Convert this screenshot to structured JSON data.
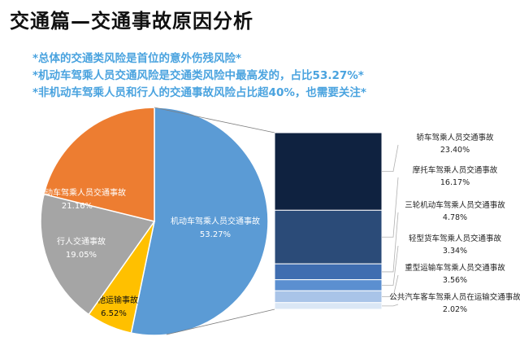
{
  "header": {
    "title": "交通篇—交通事故原因分析"
  },
  "notes": [
    "*总体的交通类风险是首位的意外伤残风险*",
    "*机动车驾乘人员交通风险是交通类风险中最高发的，占比53.27%*",
    "*非机动车驾乘人员和行人的交通事故风险占比超40%，也需要关注*"
  ],
  "chart_data": [
    {
      "type": "pie",
      "title": "",
      "slices": [
        {
          "name": "机动车驾乘人员交通事故",
          "value": 53.27,
          "label": "53.27%",
          "color": "#5b9bd5"
        },
        {
          "name": "其他运输事故",
          "value": 6.52,
          "label": "6.52%",
          "color": "#ffc000"
        },
        {
          "name": "行人交通事故",
          "value": 19.05,
          "label": "19.05%",
          "color": "#a5a5a5"
        },
        {
          "name": "非机动车驾乘人员交通事故",
          "value": 21.16,
          "label": "21.16%",
          "color": "#ed7d31"
        }
      ]
    },
    {
      "type": "bar",
      "stacked": true,
      "title": "",
      "categories": [
        "轿车驾乘人员交通事故",
        "摩托车驾乘人员交通事故",
        "三轮机动车驾乘人员交通事故",
        "轻型货车驾乘人员交通事故",
        "重型运输车驾乘人员交通事故",
        "公共汽车客车驾乘人员在运输交通事故"
      ],
      "values": [
        23.4,
        16.17,
        4.78,
        3.34,
        3.56,
        2.02
      ],
      "labels": [
        "23.40%",
        "16.17%",
        "4.78%",
        "3.34%",
        "3.56%",
        "2.02%"
      ],
      "colors": [
        "#0f2240",
        "#2b4b78",
        "#3f6db0",
        "#5b8fd0",
        "#a9c4e8",
        "#dbe7f5"
      ]
    }
  ]
}
